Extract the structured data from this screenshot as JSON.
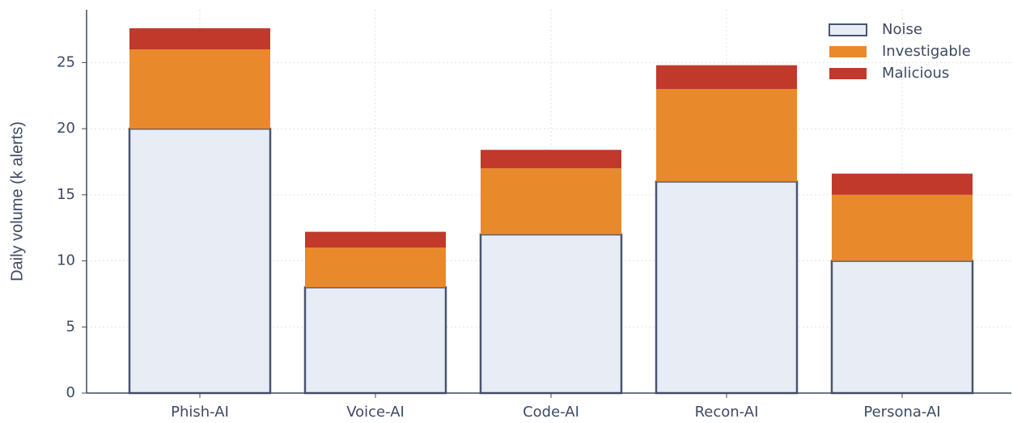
{
  "chart_data": {
    "type": "stacked_bar",
    "y_label": "Daily volume (k alerts)",
    "categories": [
      "Phish-AI",
      "Voice-AI",
      "Code-AI",
      "Recon-AI",
      "Persona-AI"
    ],
    "series": [
      {
        "name": "Noise",
        "color": "#e8edf5",
        "edge": "#4a5570",
        "values": [
          20,
          8,
          12,
          16,
          10
        ]
      },
      {
        "name": "Investigable",
        "color": "#e8892c",
        "values": [
          6,
          3,
          5,
          7,
          5
        ]
      },
      {
        "name": "Malicious",
        "color": "#c0392b",
        "values": [
          1.6,
          1.2,
          1.4,
          1.8,
          1.6
        ]
      }
    ],
    "ylim": [
      0,
      29
    ],
    "yticks": [
      0,
      5,
      10,
      15,
      20,
      25
    ],
    "grid": true,
    "legend": "upper right"
  }
}
